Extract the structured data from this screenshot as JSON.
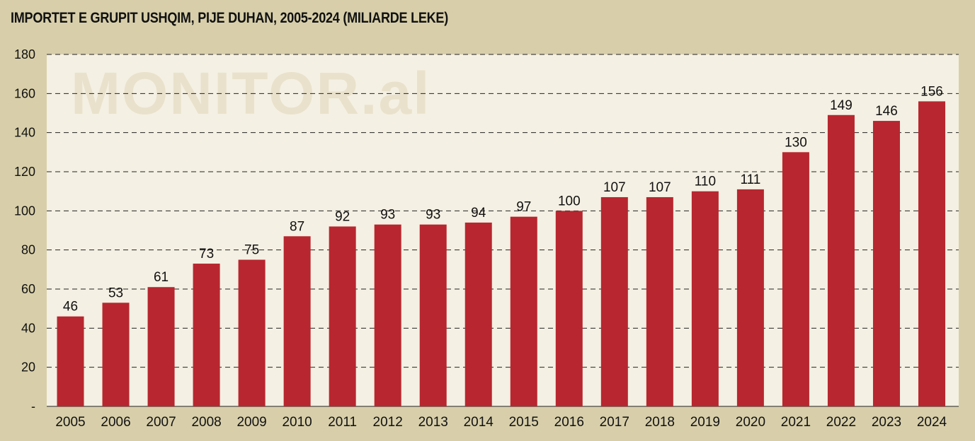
{
  "chart_data": {
    "type": "bar",
    "title": "IMPORTET E GRUPIT USHQIM, PIJE DUHAN, 2005-2024 (MILIARDE LEKE)",
    "watermark": "MONITOR.al",
    "categories": [
      "2005",
      "2006",
      "2007",
      "2008",
      "2009",
      "2010",
      "2011",
      "2012",
      "2013",
      "2014",
      "2015",
      "2016",
      "2017",
      "2018",
      "2019",
      "2020",
      "2021",
      "2022",
      "2023",
      "2024"
    ],
    "values": [
      46,
      53,
      61,
      73,
      75,
      87,
      92,
      93,
      93,
      94,
      97,
      100,
      107,
      107,
      110,
      111,
      130,
      149,
      146,
      156
    ],
    "ylim": [
      0,
      180
    ],
    "yticks": [
      0,
      20,
      40,
      60,
      80,
      100,
      120,
      140,
      160,
      180
    ],
    "ytick_labels": [
      "-",
      "20",
      "40",
      "60",
      "80",
      "100",
      "120",
      "140",
      "160",
      "180"
    ],
    "xlabel": "",
    "ylabel": "",
    "grid": "horizontal dashed",
    "bar_color": "#b8262f",
    "background_color": "#d8cfaa",
    "plot_background_color": "#f4f0e3"
  }
}
